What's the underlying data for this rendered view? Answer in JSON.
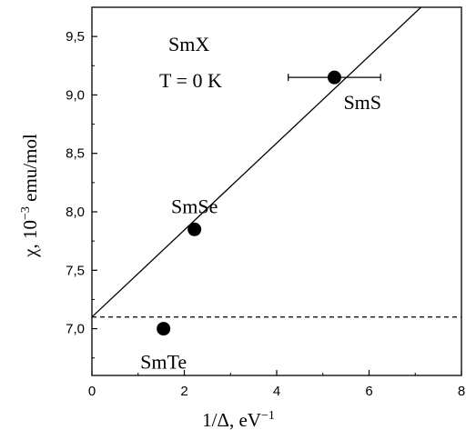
{
  "chart_data": {
    "type": "scatter",
    "xlabel": "1/Δ, eV",
    "xlabel_sup": "−1",
    "ylabel": "χ, 10",
    "ylabel_sup": "−3",
    "ylabel_rest": " emu/mol",
    "xlim": [
      0,
      8
    ],
    "ylim": [
      6.6,
      9.75
    ],
    "x_ticks": [
      0,
      2,
      4,
      6,
      8
    ],
    "x_tick_labels": [
      "0",
      "2",
      "4",
      "6",
      "8"
    ],
    "y_ticks": [
      7.0,
      7.5,
      8.0,
      8.5,
      9.0,
      9.5
    ],
    "y_tick_labels": [
      "7,0",
      "7,5",
      "8,0",
      "8,5",
      "9,0",
      "9,5"
    ],
    "grid": false,
    "points": [
      {
        "label": "SmS",
        "x": 5.25,
        "y": 9.15,
        "xerr_low": 4.25,
        "xerr_high": 6.25
      },
      {
        "label": "SmSe",
        "x": 2.22,
        "y": 7.85
      },
      {
        "label": "SmTe",
        "x": 1.55,
        "y": 7.0
      }
    ],
    "fit_line": {
      "x0": 0,
      "y0": 7.1,
      "slope": 0.372
    },
    "reference_line": {
      "y": 7.1,
      "style": "dashed"
    },
    "annotations": [
      "SmX",
      "T = 0 K"
    ]
  }
}
